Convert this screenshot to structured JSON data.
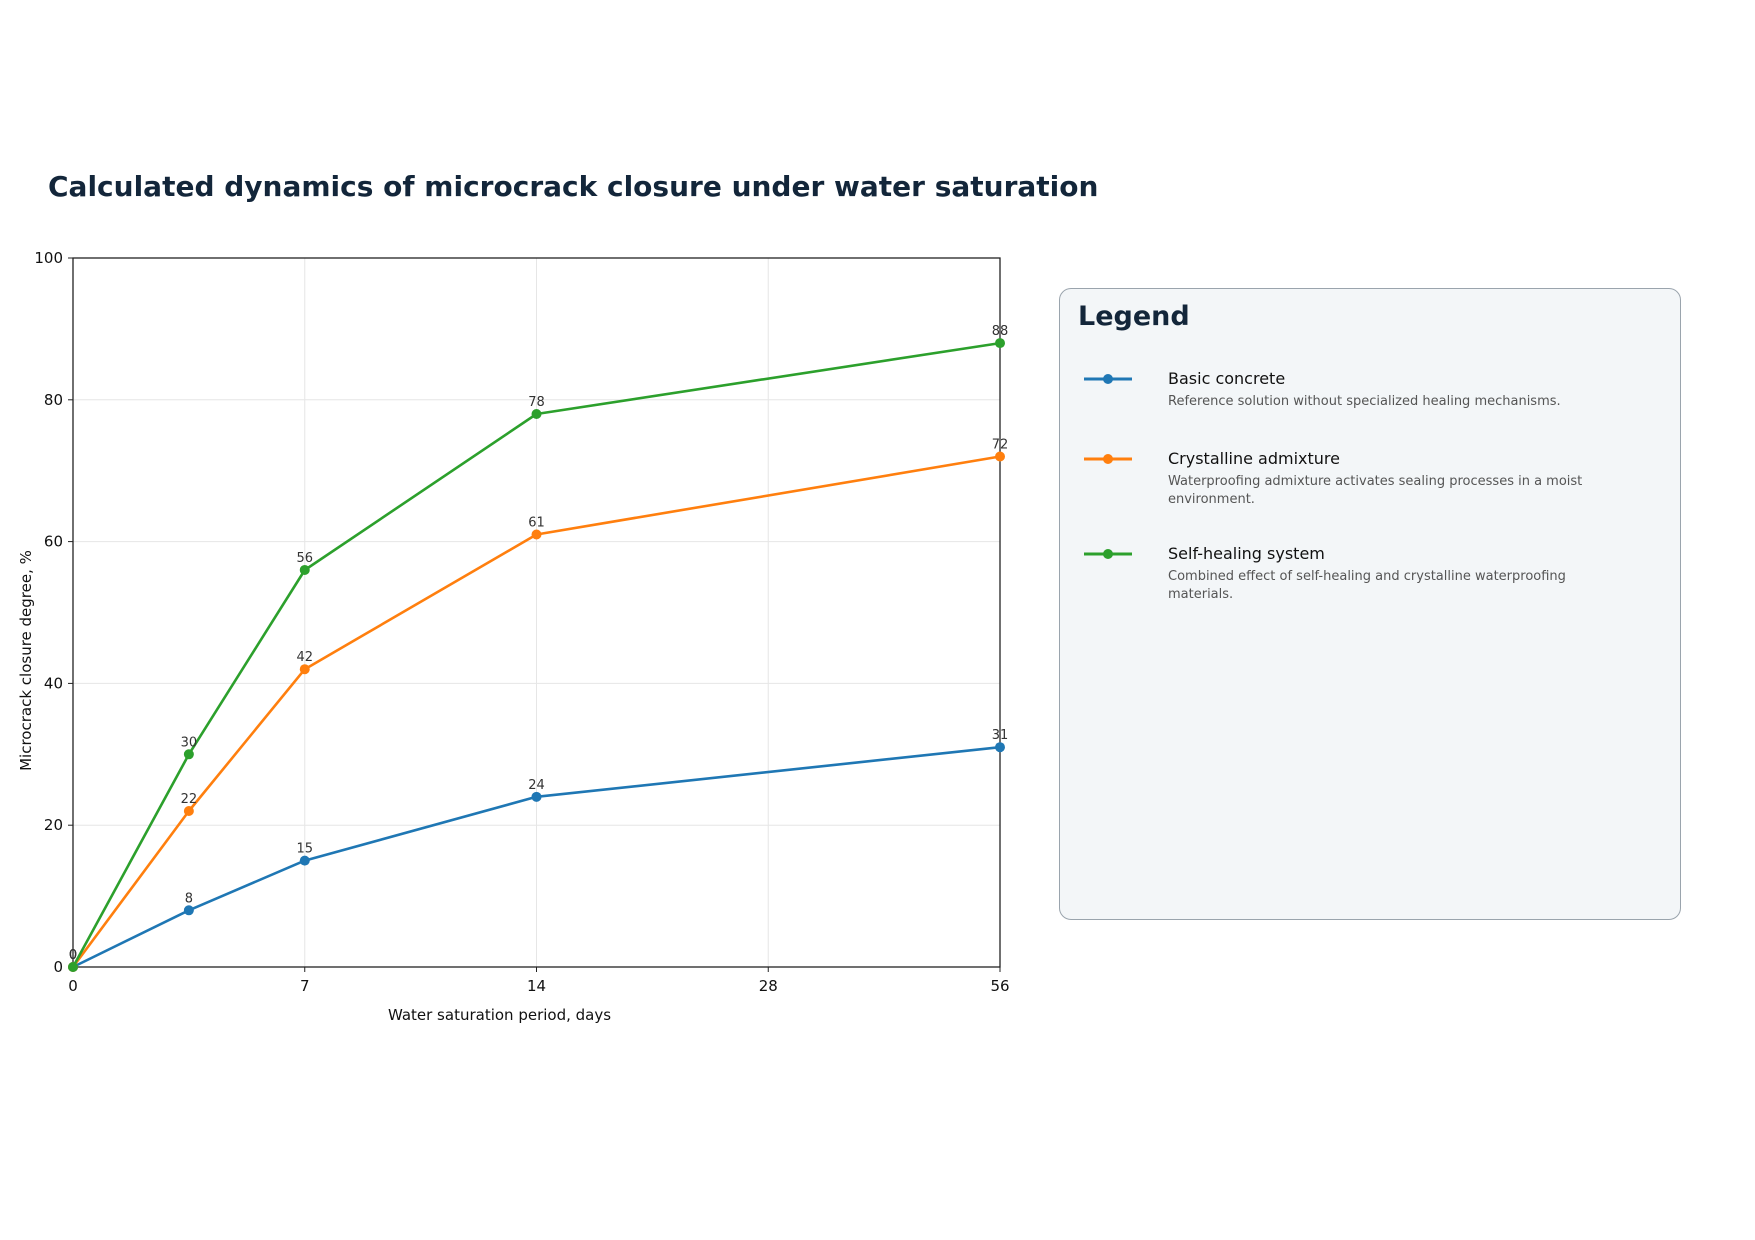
{
  "chart_data": {
    "type": "line",
    "title": "Calculated dynamics of microcrack closure under water saturation",
    "xlabel": "Water saturation period, days",
    "ylabel": "Microcrack closure degree, %",
    "x_tick_labels": [
      "0",
      "7",
      "14",
      "28",
      "56"
    ],
    "x": [
      0,
      3.5,
      7,
      14,
      56
    ],
    "ylim": [
      0,
      100
    ],
    "y_ticks": [
      0,
      20,
      40,
      60,
      80,
      100
    ],
    "grid": true,
    "legend_position": "right, outside plot",
    "series": [
      {
        "name": "Basic concrete",
        "color": "#1f77b4",
        "values": [
          0,
          8,
          15,
          24,
          31
        ],
        "description": "Reference solution without specialized healing mechanisms."
      },
      {
        "name": "Crystalline admixture",
        "color": "#ff7f0e",
        "values": [
          0,
          22,
          42,
          61,
          72
        ],
        "description": "Waterproofing admixture activates sealing processes in a moist environment."
      },
      {
        "name": "Self-healing system",
        "color": "#2ca02c",
        "values": [
          0,
          30,
          56,
          78,
          88
        ],
        "description": "Combined effect of self-healing and crystalline waterproofing materials."
      }
    ]
  },
  "legend": {
    "title": "Legend"
  }
}
